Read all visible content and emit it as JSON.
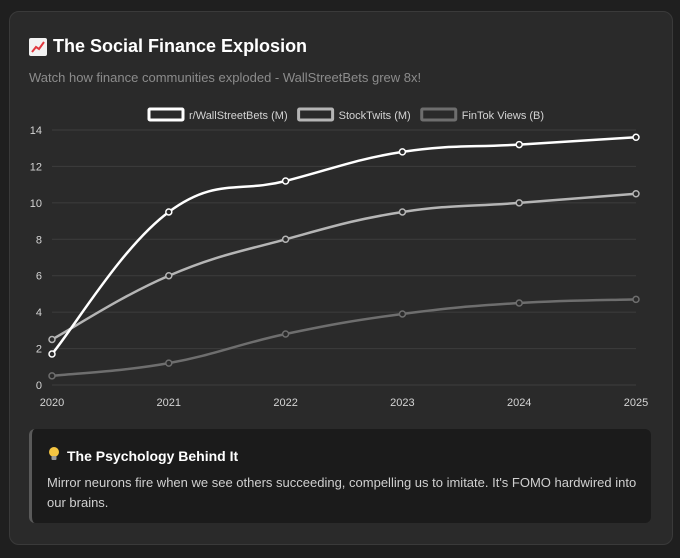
{
  "header": {
    "title": "The Social Finance Explosion",
    "subtitle": "Watch how finance communities exploded - WallStreetBets grew 8x!",
    "icon": "chart-increasing-icon"
  },
  "chart_data": {
    "type": "line",
    "x": [
      "2020",
      "2021",
      "2022",
      "2023",
      "2024",
      "2025"
    ],
    "ylim": [
      0,
      14
    ],
    "yticks": [
      0,
      2,
      4,
      6,
      8,
      10,
      12,
      14
    ],
    "grid": true,
    "legend_position": "top-center",
    "series": [
      {
        "name": "r/WallStreetBets (M)",
        "values": [
          1.7,
          9.5,
          11.2,
          12.8,
          13.2,
          13.6
        ],
        "color": "#ffffff"
      },
      {
        "name": "StockTwits (M)",
        "values": [
          2.5,
          6.0,
          8.0,
          9.5,
          10.0,
          10.5
        ],
        "color": "#b5b5b5"
      },
      {
        "name": "FinTok Views (B)",
        "values": [
          0.5,
          1.2,
          2.8,
          3.9,
          4.5,
          4.7
        ],
        "color": "#6e6e6e"
      }
    ]
  },
  "insight": {
    "icon": "light-bulb-icon",
    "title": "The Psychology Behind It",
    "text": "Mirror neurons fire when we see others succeeding, compelling us to imitate. It's FOMO hardwired into our brains."
  }
}
